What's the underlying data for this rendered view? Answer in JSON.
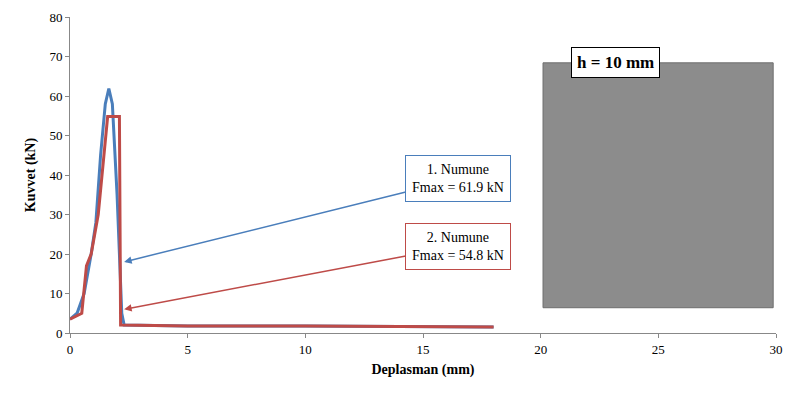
{
  "chart_data": {
    "type": "line",
    "x_label": "Deplasman (mm)",
    "y_label": "Kuvvet (kN)",
    "xlim": [
      0,
      30
    ],
    "xticks": [
      0,
      5,
      10,
      15,
      20,
      25,
      30
    ],
    "ylim": [
      0,
      80
    ],
    "yticks": [
      0,
      10,
      20,
      30,
      40,
      50,
      60,
      70,
      80
    ],
    "grid": false,
    "photo_label": "h = 10 mm",
    "series": [
      {
        "name": "1. Numune",
        "color": "#4a7ebb",
        "x": [
          0,
          0.3,
          0.6,
          0.9,
          1.1,
          1.3,
          1.5,
          1.65,
          1.8,
          2.0,
          2.2,
          2.3,
          5,
          10,
          18
        ],
        "values": [
          3.5,
          5,
          10,
          20,
          28,
          45,
          58,
          61.9,
          58,
          35,
          5,
          2,
          1.8,
          1.8,
          1.5
        ]
      },
      {
        "name": "2. Numune",
        "color": "#be4b48",
        "x": [
          0,
          0.5,
          0.7,
          0.9,
          1.2,
          1.5,
          1.6,
          1.7,
          2.1,
          2.15,
          5,
          10,
          18
        ],
        "values": [
          3.5,
          5,
          17,
          20,
          30,
          50,
          54.8,
          54.8,
          54.8,
          2,
          1.8,
          1.8,
          1.5
        ]
      }
    ],
    "annotations": [
      {
        "series": 0,
        "lines": [
          "1. Numune",
          "Fmax = 61.9 kN"
        ]
      },
      {
        "series": 1,
        "lines": [
          "2. Numune",
          "Fmax = 54.8 kN"
        ]
      }
    ]
  }
}
